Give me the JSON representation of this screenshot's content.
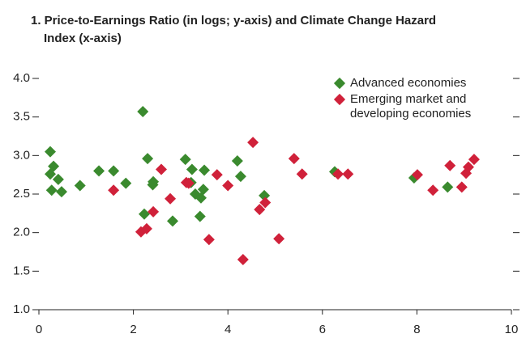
{
  "chart_data": {
    "type": "scatter",
    "title": [
      "1. Price-to-Earnings Ratio (in logs; y-axis) and Climate Change Hazard",
      "Index (x-axis)"
    ],
    "xlim": [
      0,
      10
    ],
    "xticks": [
      0,
      2,
      4,
      6,
      8,
      10
    ],
    "ylim": [
      1.0,
      4.0
    ],
    "yticks": [
      {
        "value": 1.0,
        "label": "1.0"
      },
      {
        "value": 1.5,
        "label": "1.5"
      },
      {
        "value": 2.0,
        "label": "2.0"
      },
      {
        "value": 2.5,
        "label": "2.5"
      },
      {
        "value": 3.0,
        "label": "3.0"
      },
      {
        "value": 3.5,
        "label": "3.5"
      },
      {
        "value": 4.0,
        "label": "4.0"
      }
    ],
    "series": [
      {
        "name": "Advanced economies",
        "color": "#3a8a2e",
        "x": [
          0.24,
          0.24,
          0.31,
          0.27,
          0.41,
          0.48,
          0.87,
          1.27,
          1.58,
          1.84,
          2.2,
          2.23,
          2.3,
          2.42,
          2.41,
          2.83,
          3.1,
          3.22,
          3.24,
          3.31,
          3.43,
          3.48,
          3.41,
          3.5,
          4.2,
          4.27,
          4.77,
          6.26,
          7.94,
          8.65
        ],
        "values": [
          3.05,
          2.76,
          2.86,
          2.55,
          2.69,
          2.53,
          2.61,
          2.8,
          2.8,
          2.64,
          3.57,
          2.24,
          2.96,
          2.66,
          2.62,
          2.15,
          2.95,
          2.65,
          2.82,
          2.5,
          2.45,
          2.56,
          2.21,
          2.81,
          2.93,
          2.73,
          2.48,
          2.79,
          2.71,
          2.59
        ]
      },
      {
        "name": "Emerging market and developing economies",
        "color": "#d0213a",
        "x": [
          1.58,
          2.16,
          2.28,
          2.42,
          2.59,
          2.78,
          3.12,
          3.17,
          3.77,
          3.6,
          4.0,
          4.53,
          4.67,
          4.79,
          4.32,
          5.08,
          5.4,
          5.57,
          6.33,
          6.54,
          8.01,
          8.34,
          8.7,
          8.95,
          9.04,
          9.09,
          9.21
        ],
        "values": [
          2.55,
          2.01,
          2.05,
          2.27,
          2.82,
          2.44,
          2.65,
          2.64,
          2.75,
          1.91,
          2.61,
          3.17,
          2.3,
          2.39,
          1.65,
          1.92,
          2.96,
          2.76,
          2.76,
          2.76,
          2.75,
          2.55,
          2.87,
          2.59,
          2.77,
          2.85,
          2.95
        ]
      }
    ]
  }
}
